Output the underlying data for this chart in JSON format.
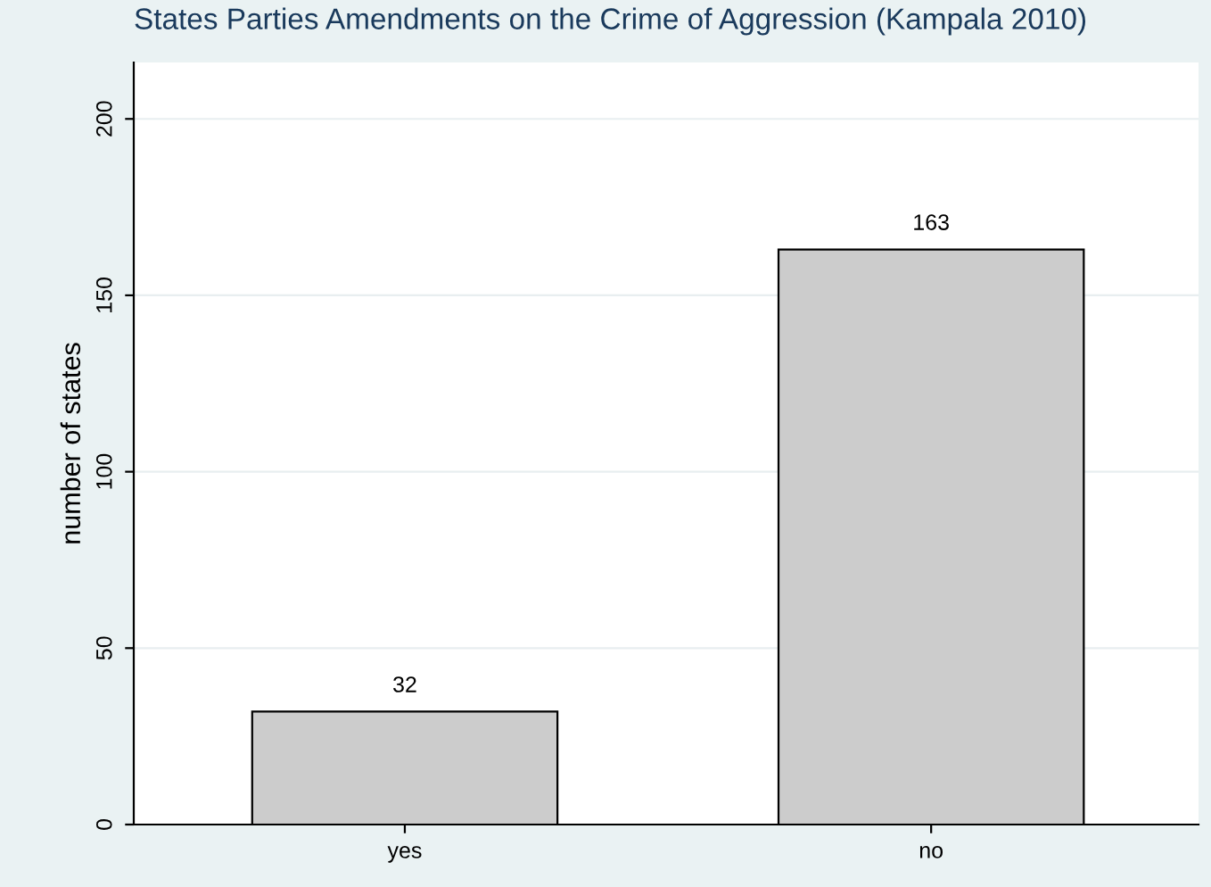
{
  "chart_data": {
    "type": "bar",
    "title": "States Parties Amendments on the Crime of Aggression (Kampala 2010)",
    "ylabel": "number of states",
    "categories": [
      "yes",
      "no"
    ],
    "values": [
      32,
      163
    ],
    "color": "#cccccc",
    "ylim": [
      0,
      216
    ],
    "yticks": [
      0,
      50,
      100,
      150,
      200
    ],
    "grid": "y",
    "data_labels": true
  }
}
